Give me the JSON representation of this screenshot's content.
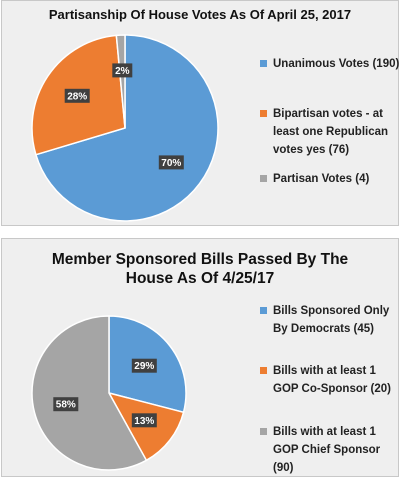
{
  "chart_data": [
    {
      "type": "pie",
      "title": "Partisanship Of House Votes As Of April 25, 2017",
      "slices": [
        {
          "label": "Unanimous Votes (190)",
          "value": 190,
          "percent_label": "70%",
          "color": "#5b9bd5"
        },
        {
          "label": "Bipartisan votes - at least one Republican votes yes (76)",
          "value": 76,
          "percent_label": "28%",
          "color": "#ed7d31"
        },
        {
          "label": "Partisan Votes (4)",
          "value": 4,
          "percent_label": "2%",
          "color": "#a5a5a5"
        }
      ],
      "legend_position": "right"
    },
    {
      "type": "pie",
      "title": "Member Sponsored Bills Passed By The House As Of 4/25/17",
      "slices": [
        {
          "label": "Bills Sponsored Only By Democrats (45)",
          "value": 45,
          "percent_label": "29%",
          "color": "#5b9bd5"
        },
        {
          "label": "Bills with at least 1 GOP Co-Sponsor (20)",
          "value": 20,
          "percent_label": "13%",
          "color": "#ed7d31"
        },
        {
          "label": "Bills with at least 1 GOP Chief Sponsor (90)",
          "value": 90,
          "percent_label": "58%",
          "color": "#a5a5a5"
        }
      ],
      "legend_position": "right"
    }
  ]
}
